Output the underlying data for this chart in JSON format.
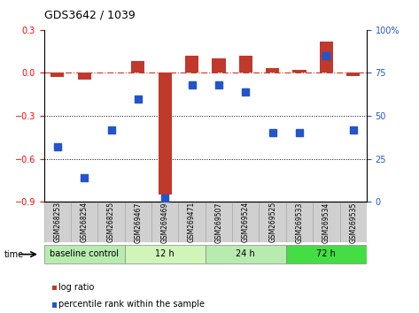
{
  "title": "GDS3642 / 1039",
  "samples": [
    "GSM268253",
    "GSM268254",
    "GSM268255",
    "GSM269467",
    "GSM269469",
    "GSM269471",
    "GSM269507",
    "GSM269524",
    "GSM269525",
    "GSM269533",
    "GSM269534",
    "GSM269535"
  ],
  "log_ratio": [
    -0.03,
    -0.05,
    0.0,
    0.08,
    -0.85,
    0.12,
    0.1,
    0.12,
    0.03,
    0.02,
    0.22,
    -0.02
  ],
  "percentile_rank": [
    32,
    14,
    42,
    60,
    2,
    68,
    68,
    64,
    40,
    40,
    85,
    42
  ],
  "ylim_left": [
    -0.9,
    0.3
  ],
  "ylim_right": [
    0,
    100
  ],
  "yticks_left": [
    -0.9,
    -0.6,
    -0.3,
    0.0,
    0.3
  ],
  "yticks_right": [
    0,
    25,
    50,
    75,
    100
  ],
  "hline_y": 0.0,
  "dotted_lines": [
    -0.3,
    -0.6
  ],
  "bar_color": "#c0392b",
  "scatter_color": "#2255cc",
  "bar_width": 0.5,
  "scatter_size": 40,
  "groups": [
    {
      "label": "baseline control",
      "start": 0,
      "end": 3,
      "color": "#b8ebb0"
    },
    {
      "label": "12 h",
      "start": 3,
      "end": 6,
      "color": "#d0f5b8"
    },
    {
      "label": "24 h",
      "start": 6,
      "end": 9,
      "color": "#b8ebb0"
    },
    {
      "label": "72 h",
      "start": 9,
      "end": 12,
      "color": "#44dd44"
    }
  ],
  "time_label": "time",
  "legend_items": [
    {
      "label": "log ratio",
      "color": "#c0392b"
    },
    {
      "label": "percentile rank within the sample",
      "color": "#2255cc"
    }
  ],
  "sample_box_color": "#d0d0d0",
  "sample_box_edge": "#aaaaaa",
  "right_ytick_label": "100%"
}
